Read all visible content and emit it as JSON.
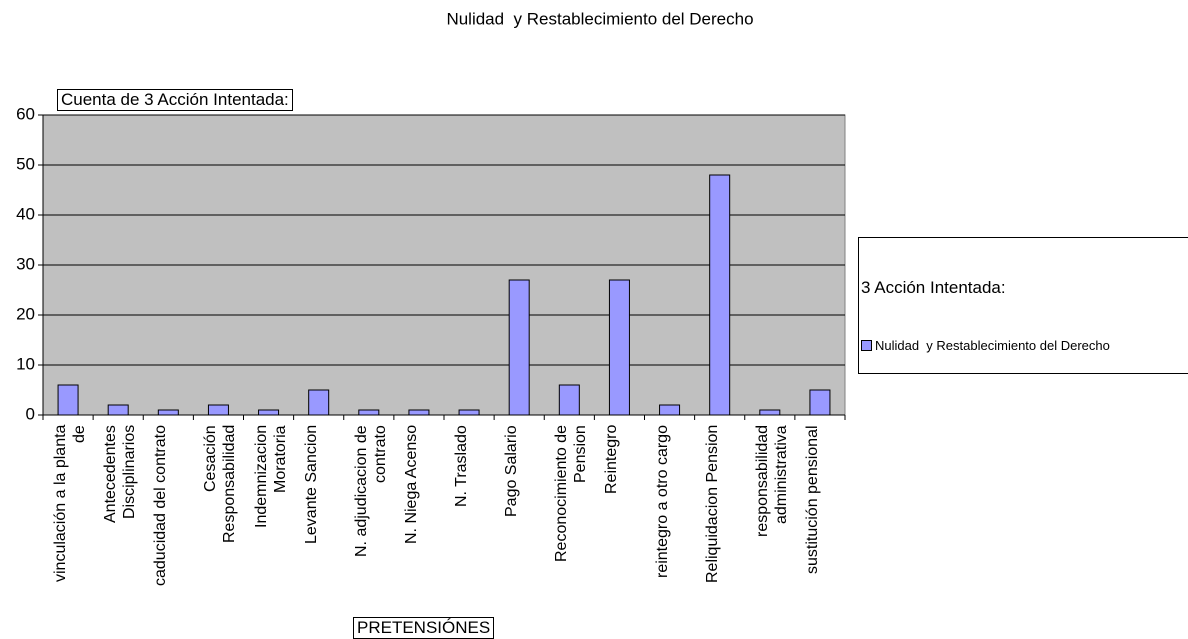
{
  "chart_data": {
    "type": "bar",
    "title": "Nulidad  y Restablecimiento del Derecho",
    "field_label": "Cuenta de 3 Acción Intentada:",
    "legend_title": "3 Acción Intentada:",
    "x_label": "PRETENSIÓNES",
    "categories": [
      "vinculación a la planta de",
      "Antecedentes Disciplinarios",
      "caducidad del contrato",
      "Cesación Responsabilidad",
      "Indemnizacion Moratoria",
      "Levante Sancion",
      "N. adjudicacion de contrato",
      "N. Niega Acenso",
      "N. Traslado",
      "Pago Salario",
      "Reconocimiento de Pension",
      "Reintegro",
      "reintegro a otro cargo",
      "Reliquidacion Pension",
      "responsabilidad administrativa",
      "sustitución pensional"
    ],
    "series": [
      {
        "name": "Nulidad  y Restablecimiento del Derecho",
        "color": "#9999ff",
        "values": [
          6,
          2,
          1,
          2,
          1,
          5,
          1,
          1,
          1,
          27,
          6,
          27,
          2,
          48,
          1,
          5
        ]
      }
    ],
    "ylim": [
      0,
      60
    ],
    "yticks": [
      0,
      10,
      20,
      30,
      40,
      50,
      60
    ],
    "grid": true,
    "legend": "right"
  }
}
